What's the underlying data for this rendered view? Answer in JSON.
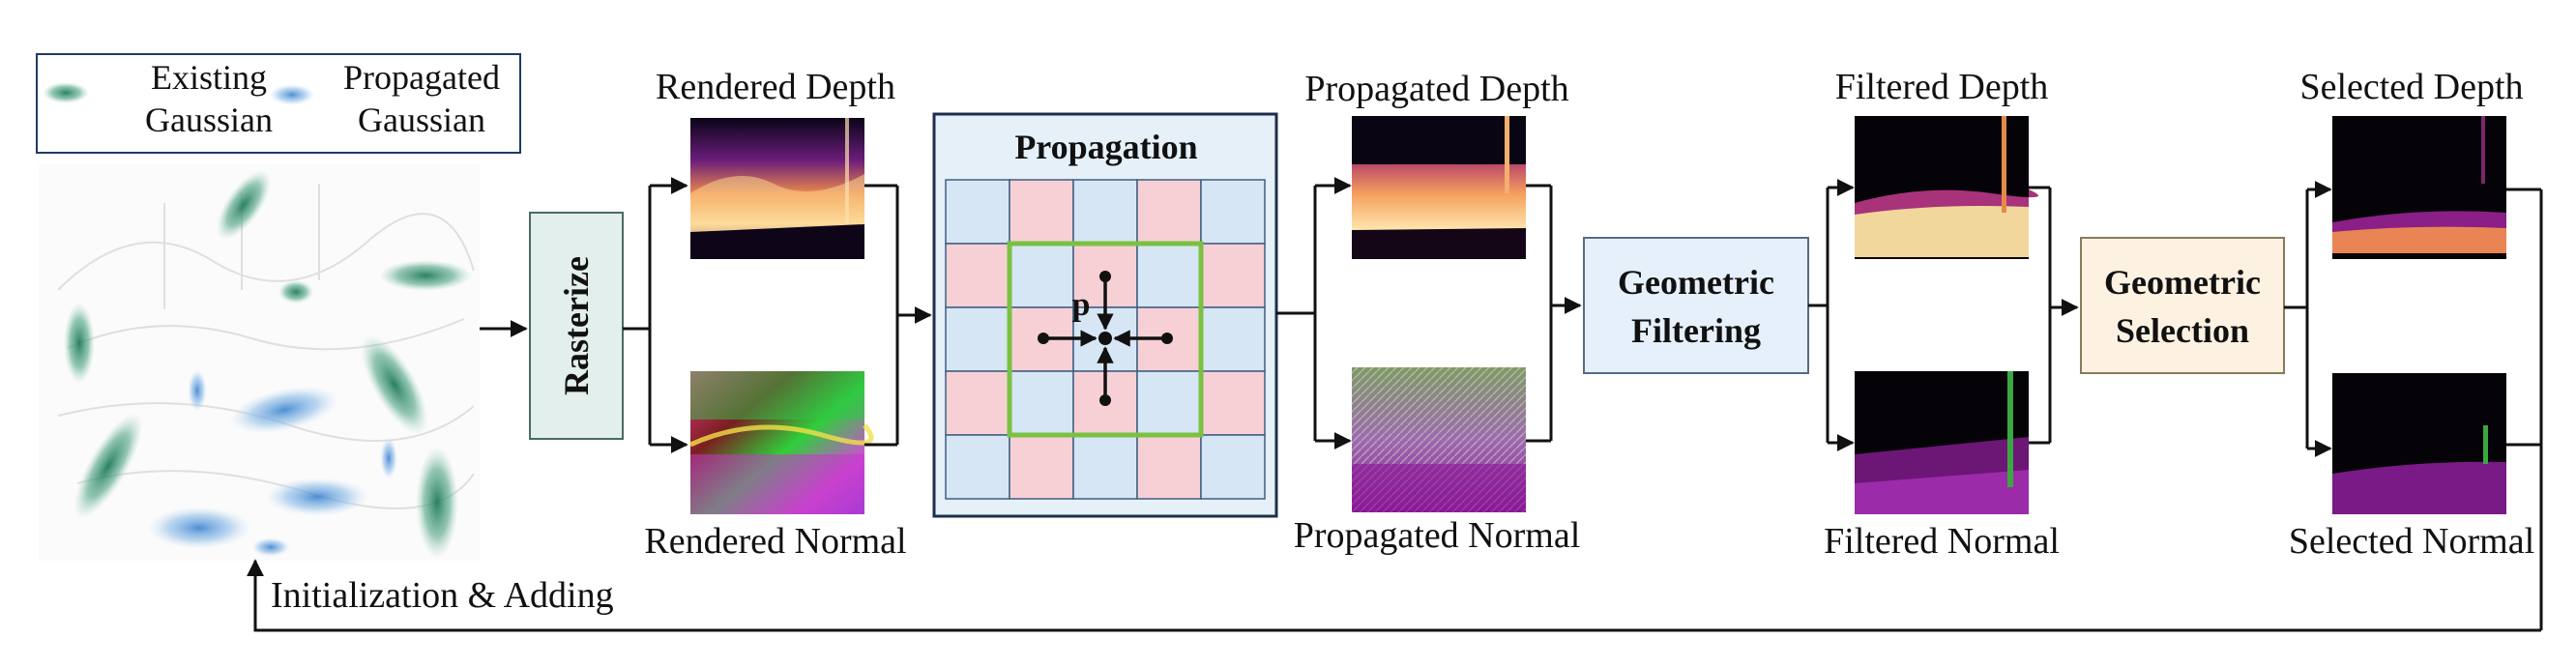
{
  "legend": {
    "existing_label_line1": "Existing",
    "existing_label_line2": "Gaussian",
    "propagated_label_line1": "Propagated",
    "propagated_label_line2": "Gaussian",
    "existing_color": "#2e8b6a",
    "propagated_color": "#6aa5dc"
  },
  "steps": {
    "rasterize": "Rasterize",
    "propagation": "Propagation",
    "geometric_filtering_line1": "Geometric",
    "geometric_filtering_line2": "Filtering",
    "geometric_selection_line1": "Geometric",
    "geometric_selection_line2": "Selection"
  },
  "images": {
    "rendered_depth": "Rendered Depth",
    "rendered_normal": "Rendered Normal",
    "propagated_depth": "Propagated Depth",
    "propagated_normal": "Propagated Normal",
    "filtered_depth": "Filtered Depth",
    "filtered_normal": "Filtered Normal",
    "selected_depth": "Selected Depth",
    "selected_normal": "Selected Normal"
  },
  "propagation_grid": {
    "pixel_label": "p",
    "rows": 5,
    "cols": 5,
    "pattern": "checkerboard",
    "color_a": "#d6e6f4",
    "color_b": "#f7d0d6",
    "highlight_color": "#7ac142"
  },
  "feedback": {
    "label": "Initialization & Adding"
  },
  "colors": {
    "rasterize_fill": "#e3efec",
    "propagation_fill": "#e6f0f9",
    "filtering_fill": "#e6f0fa",
    "selection_fill": "#fdf2e2"
  }
}
